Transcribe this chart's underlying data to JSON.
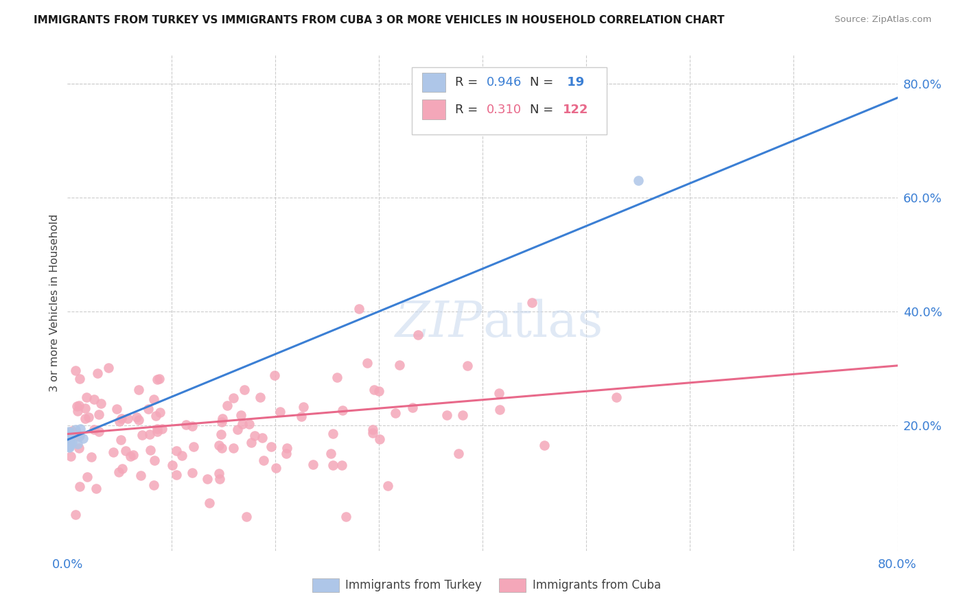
{
  "title": "IMMIGRANTS FROM TURKEY VS IMMIGRANTS FROM CUBA 3 OR MORE VEHICLES IN HOUSEHOLD CORRELATION CHART",
  "source": "Source: ZipAtlas.com",
  "ylabel_label": "3 or more Vehicles in Household",
  "xlim": [
    0.0,
    0.8
  ],
  "ylim": [
    -0.02,
    0.85
  ],
  "turkey_R": 0.946,
  "turkey_N": 19,
  "cuba_R": 0.31,
  "cuba_N": 122,
  "turkey_color": "#aec6e8",
  "cuba_color": "#f4a7b9",
  "turkey_line_color": "#3b7fd4",
  "cuba_line_color": "#e8698a",
  "legend_label_turkey": "Immigrants from Turkey",
  "legend_label_cuba": "Immigrants from Cuba",
  "background_color": "#ffffff",
  "grid_color": "#cccccc",
  "turkey_line_x0": 0.0,
  "turkey_line_y0": 0.175,
  "turkey_line_x1": 0.8,
  "turkey_line_y1": 0.775,
  "cuba_line_x0": 0.0,
  "cuba_line_y0": 0.185,
  "cuba_line_x1": 0.8,
  "cuba_line_y1": 0.305,
  "y_ticks_right": [
    0.2,
    0.4,
    0.6,
    0.8
  ],
  "y_tick_labels_right": [
    "20.0%",
    "40.0%",
    "60.0%",
    "80.0%"
  ],
  "x_tick_labels": [
    "0.0%",
    "80.0%"
  ]
}
